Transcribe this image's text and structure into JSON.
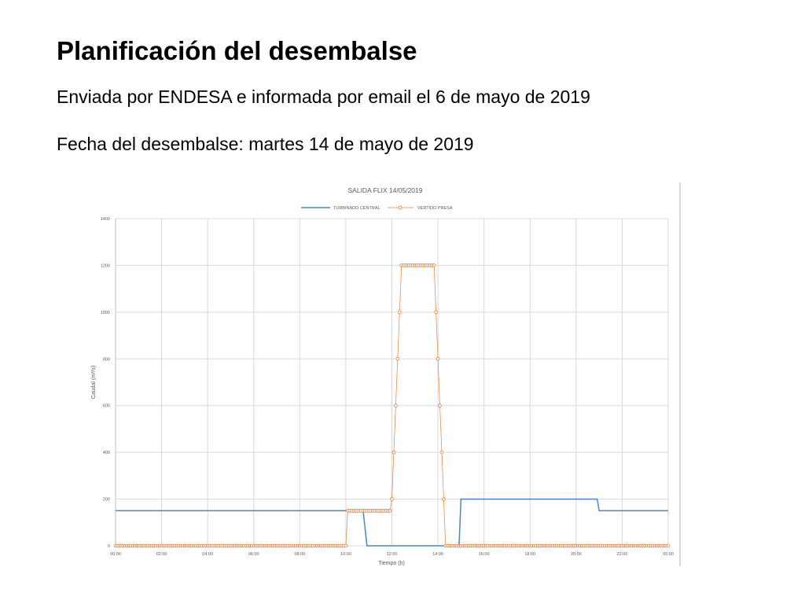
{
  "slide": {
    "title": "Planificación del desembalse",
    "subtitle": "Enviada por ENDESA e informada por email el 6 de mayo de 2019",
    "dateline": "Fecha del desembalse: martes 14 de mayo de 2019"
  },
  "chart_data": {
    "type": "line",
    "title": "SALIDA FLIX 14/05/2019",
    "xlabel": "Tiempo (h)",
    "ylabel": "Caudal (m³/s)",
    "ylim": [
      0,
      1400
    ],
    "xlim": [
      "00:00",
      "24:00"
    ],
    "grid": true,
    "legend": "top-center",
    "y_ticks": [
      "0",
      "200",
      "400",
      "600",
      "800",
      "1000",
      "1200",
      "1400"
    ],
    "x_ticks": [
      "00:00",
      "02:00",
      "04:00",
      "06:00",
      "08:00",
      "10:00",
      "12:00",
      "14:00",
      "16:00",
      "18:00",
      "20:00",
      "22:00",
      "00:00"
    ],
    "series": [
      {
        "name": "TURBINADO CENTRAL",
        "color": "#4a86c5",
        "style": "line",
        "points": [
          [
            "00:00",
            150
          ],
          [
            "10:45",
            150
          ],
          [
            "10:55",
            0
          ],
          [
            "14:55",
            0
          ],
          [
            "15:00",
            200
          ],
          [
            "20:55",
            200
          ],
          [
            "21:00",
            150
          ],
          [
            "24:00",
            150
          ]
        ]
      },
      {
        "name": "VERTIDO PRESA",
        "color": "#ed7d31",
        "style": "markers-line",
        "points": [
          [
            "00:00",
            0
          ],
          [
            "10:00",
            0
          ],
          [
            "10:05",
            150
          ],
          [
            "11:55",
            150
          ],
          [
            "12:00",
            200
          ],
          [
            "12:05",
            400
          ],
          [
            "12:10",
            600
          ],
          [
            "12:15",
            800
          ],
          [
            "12:20",
            1000
          ],
          [
            "12:25",
            1200
          ],
          [
            "13:50",
            1200
          ],
          [
            "13:55",
            1000
          ],
          [
            "14:00",
            800
          ],
          [
            "14:05",
            600
          ],
          [
            "14:10",
            400
          ],
          [
            "14:15",
            200
          ],
          [
            "14:20",
            0
          ],
          [
            "24:00",
            0
          ]
        ]
      }
    ]
  }
}
